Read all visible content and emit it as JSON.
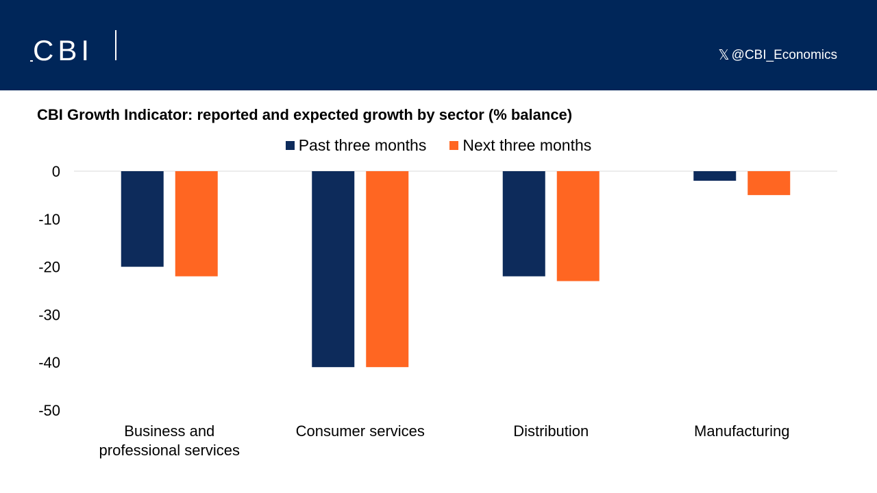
{
  "header": {
    "logo_text": "CBI",
    "social_handle": "@CBI_Economics",
    "social_icon": "x-icon",
    "background_color": "#002659"
  },
  "chart_data": {
    "type": "bar",
    "title": "CBI Growth Indicator: reported and expected growth by sector (% balance)",
    "categories": [
      [
        "Business and",
        "professional services"
      ],
      [
        "Consumer services"
      ],
      [
        "Distribution"
      ],
      [
        "Manufacturing"
      ]
    ],
    "series": [
      {
        "name": "Past three months",
        "color": "#0d2b5b",
        "values": [
          -20,
          -41,
          -22,
          -2
        ]
      },
      {
        "name": "Next three months",
        "color": "#ff6622",
        "values": [
          -22,
          -41,
          -23,
          -5
        ]
      }
    ],
    "xlabel": "",
    "ylabel": "",
    "ylim": [
      -50,
      0
    ],
    "yticks": [
      0,
      -10,
      -20,
      -30,
      -40,
      -50
    ],
    "legend_position": "top-center",
    "grid": false
  }
}
